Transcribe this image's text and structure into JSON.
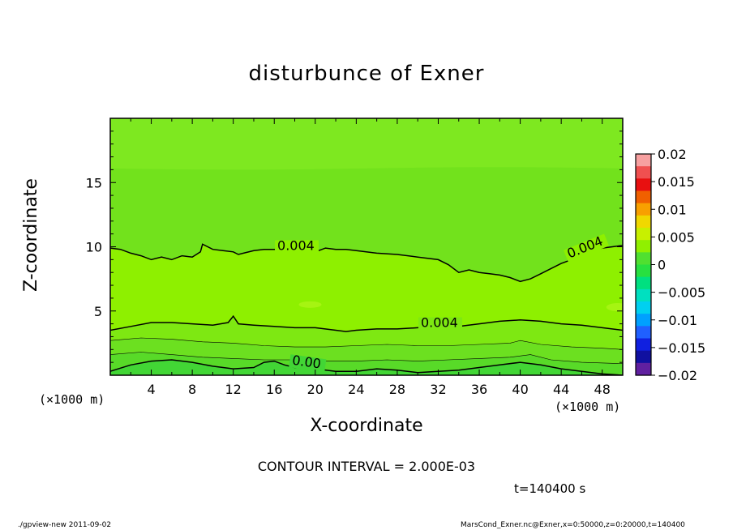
{
  "chart_data": {
    "type": "heatmap",
    "title": "disturbunce of Exner",
    "xlabel": "X-coordinate",
    "ylabel": "Z-coordinate",
    "x_unit": "(×1000 m)",
    "y_unit": "(×1000 m)",
    "xlim": [
      0,
      50
    ],
    "ylim": [
      0,
      20
    ],
    "x_ticks": [
      4,
      8,
      12,
      16,
      20,
      24,
      28,
      32,
      36,
      40,
      44,
      48
    ],
    "y_ticks": [
      5,
      10,
      15
    ],
    "colorbar": {
      "ticks": [
        "0.02",
        "0.015",
        "0.01",
        "0.005",
        "0",
        "−0.005",
        "−0.01",
        "−0.015",
        "−0.02"
      ],
      "values": [
        0.02,
        0.015,
        0.01,
        0.005,
        0,
        -0.005,
        -0.01,
        -0.015,
        -0.02
      ],
      "colors": [
        "#f7a0a0",
        "#f05050",
        "#e81010",
        "#f06000",
        "#f8a000",
        "#f0d800",
        "#c8f000",
        "#90f000",
        "#50e030",
        "#28e040",
        "#00e080",
        "#00e0c0",
        "#00d0f0",
        "#00a0ff",
        "#2060ff",
        "#1020e0",
        "#1010a0",
        "#6020a0"
      ]
    },
    "contour_interval": "CONTOUR INTERVAL = 2.000E-03",
    "time_label": "t=140400 s",
    "contour_labels": [
      "0.004",
      "0.004",
      "0.004",
      "0.00"
    ],
    "footer_left": "./gpview-new  2011-09-02",
    "footer_right": "MarsCond_Exner.nc@Exner,x=0:50000,z=0:20000,t=140400",
    "band_colors": {
      "top": "#7ee820",
      "upper": "#72e21c",
      "middle": "#8ef000",
      "band1": "#7ee812",
      "band2": "#6ce020",
      "band3": "#58da28",
      "bottom": "#42d635"
    }
  }
}
